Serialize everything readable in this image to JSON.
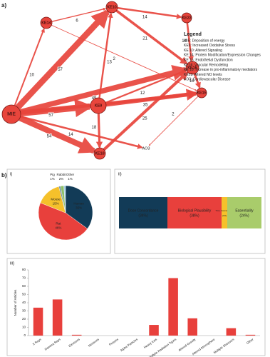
{
  "panel_a": {
    "label": "a)",
    "nodes": [
      {
        "id": "MIE"
      },
      {
        "id": "KE14"
      },
      {
        "id": "KE10"
      },
      {
        "id": "KE23"
      },
      {
        "id": "KE16"
      },
      {
        "id": "KE15"
      },
      {
        "id": "KE9"
      },
      {
        "id": "KE18"
      },
      {
        "id": "AO3"
      }
    ],
    "edges": [
      {
        "from": "MIE",
        "to": "KE14",
        "value": 10
      },
      {
        "from": "MIE",
        "to": "KE10",
        "value": 57
      },
      {
        "from": "KE14",
        "to": "KE10",
        "value": 6
      },
      {
        "from": "KE10",
        "to": "KE23",
        "value": 14
      },
      {
        "from": "KE23",
        "to": "KE16",
        "value": 14
      },
      {
        "from": "KE10",
        "to": "KE16",
        "value": 21
      },
      {
        "from": "KE14",
        "to": "KE15",
        "value": 2
      },
      {
        "from": "MIE",
        "to": "KE16",
        "value": 49
      },
      {
        "from": "KE9",
        "to": "KE10",
        "value": 13
      },
      {
        "from": "KE9",
        "to": "KE16",
        "value": 12
      },
      {
        "from": "MIE",
        "to": "KE9",
        "value": 57
      },
      {
        "from": "KE9",
        "to": "KE15",
        "value": 35
      },
      {
        "from": "MIE",
        "to": "KE15",
        "value": 27
      },
      {
        "from": "KE16",
        "to": "KE15",
        "value": 16
      },
      {
        "from": "MIE",
        "to": "KE18",
        "value": 54
      },
      {
        "from": "MIE",
        "to": "AO3",
        "value": 14
      },
      {
        "from": "KE9",
        "to": "KE18",
        "value": 18
      },
      {
        "from": "KE18",
        "to": "KE16",
        "value": 25
      },
      {
        "from": "KE15",
        "to": "AO3",
        "value": 2
      }
    ],
    "legend": {
      "title": "Legend",
      "items": [
        "MIE: Deposition of energy",
        "KE9: Increased Oxidative Stress",
        "KE 10: Altered Signaling",
        "KE 14: Protein Modification/Expression Changes",
        "KE 15: Endothelial Dysfunction",
        "KE16: Vascular Remodeling",
        "KE 18: Increase in pro-inflammatory mediators",
        "KE23: Altered NO levels",
        "AO3: Cardiovascular Disease"
      ]
    }
  },
  "panel_b": {
    "label": "b)"
  },
  "chart_data": [
    {
      "type": "pie",
      "label": "i)",
      "categories": [
        "Human",
        "Rat",
        "Mouse",
        "Pig",
        "Rabbit",
        "Other"
      ],
      "values": [
        35,
        46,
        15,
        1,
        2,
        1
      ],
      "value_labels": [
        "35%",
        "46%",
        "15%",
        "1%",
        "2%",
        "1%"
      ],
      "colors": [
        "#123b57",
        "#e8403c",
        "#f5c12b",
        "#6f8fa0",
        "#8fbf6a",
        "#9fd0e6"
      ]
    },
    {
      "type": "stacked_bar",
      "label": "ii)",
      "series": [
        {
          "name": "Dose Concordance",
          "color": "#123b57",
          "values": [
            34
          ],
          "value_labels": [
            "(34%)"
          ]
        },
        {
          "name": "Biological Plausibility",
          "color": "#e8403c",
          "values": [
            38
          ],
          "value_labels": [
            "(38%)"
          ]
        },
        {
          "name": "Time Concordance",
          "color": "#f5c12b",
          "values": [
            4
          ],
          "value_labels": [
            "(4%)"
          ]
        },
        {
          "name": "Essentiality",
          "color": "#a9cc6b",
          "values": [
            24
          ],
          "value_labels": [
            "(24%)"
          ]
        }
      ]
    },
    {
      "type": "bar",
      "label": "iii)",
      "ylabel": "Number of Articles",
      "color": "#e8403c",
      "categories": [
        "X Rays",
        "Gamma Rays",
        "Electrons",
        "Neutrons",
        "Protons",
        "Alpha Particles",
        "Heavy Ions",
        "Multiple Radiation Types",
        "Altered Gravity",
        "Altered Atmosphere",
        "Multiple Stressors",
        "Other"
      ],
      "values": [
        34,
        44,
        1,
        0,
        0,
        0,
        13,
        70,
        21,
        0,
        9,
        1
      ],
      "ylim": [
        0,
        80
      ],
      "yticks": [
        0,
        10,
        20,
        30,
        40,
        50,
        60,
        70,
        80
      ]
    }
  ]
}
